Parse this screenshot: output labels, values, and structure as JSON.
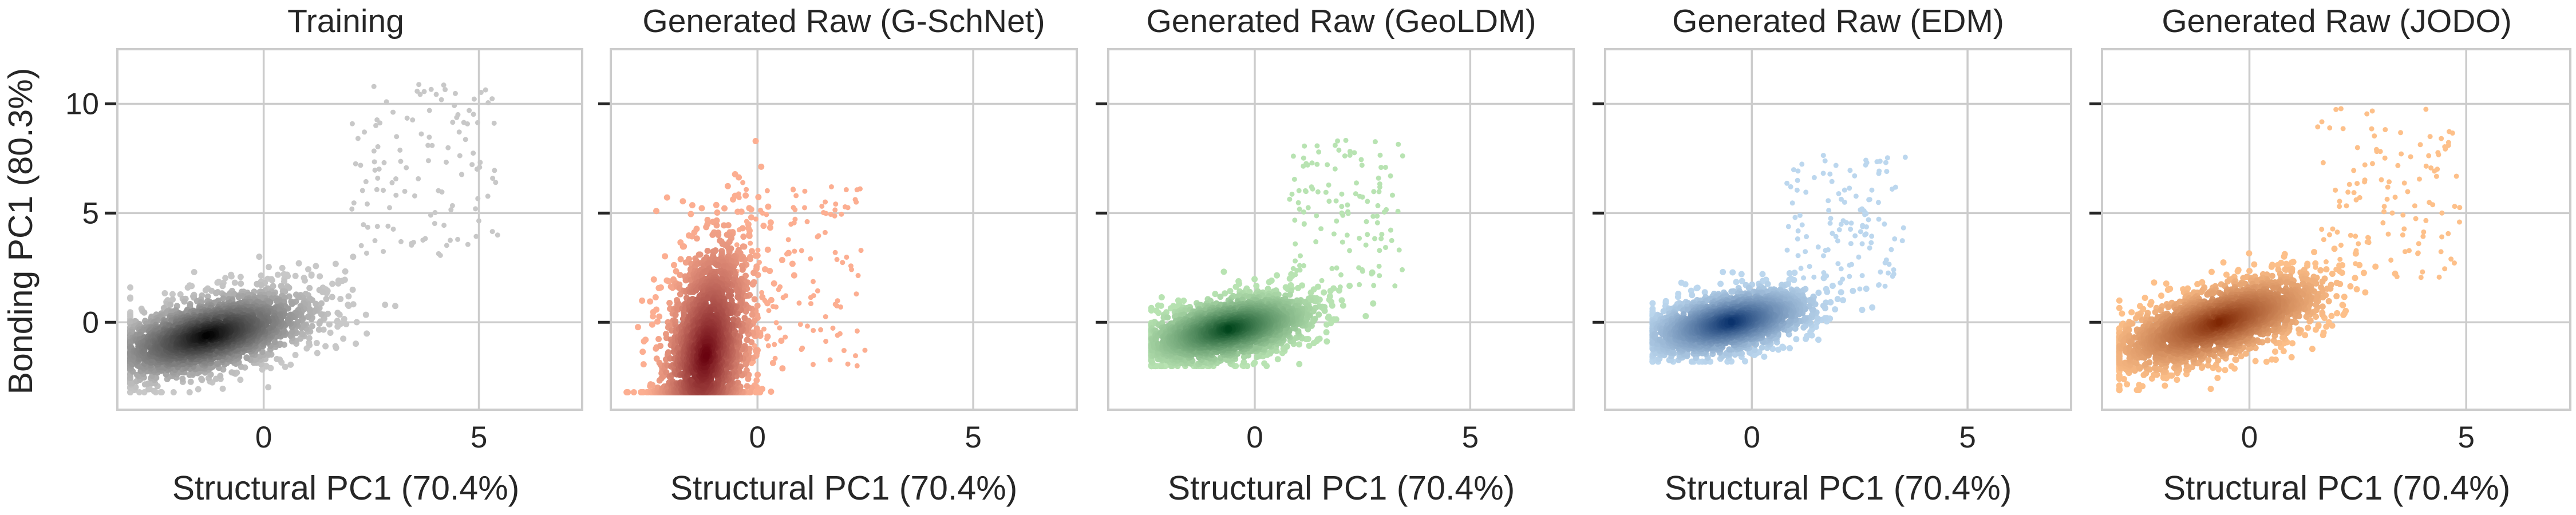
{
  "chart_data": [
    {
      "type": "scatter",
      "title": "Training",
      "xlabel": "Structural PC1 (70.4%)",
      "ylabel": "Bonding PC1 (80.3%)",
      "xlim": [
        -3.4,
        7.4
      ],
      "ylim": [
        -4.0,
        12.5
      ],
      "xticks": [
        0,
        5
      ],
      "yticks": [
        0,
        5,
        10
      ],
      "grid": true,
      "color": "#000000",
      "light_color": "#c8c8c8",
      "density": {
        "center": [
          -1.3,
          -0.6
        ],
        "slope": 0.42,
        "spread_x": 1.25,
        "spread_y": 0.9,
        "x_range": [
          -3.1,
          6.9
        ],
        "y_range": [
          -3.2,
          12.0
        ],
        "outlier_region": {
          "x": [
            2.0,
            5.5
          ],
          "y": [
            3.0,
            11.0
          ]
        }
      }
    },
    {
      "type": "scatter",
      "title": "Generated Raw (G-SchNet)",
      "xlabel": "Structural PC1 (70.4%)",
      "xlim": [
        -3.4,
        7.4
      ],
      "ylim": [
        -4.0,
        12.5
      ],
      "xticks": [
        0,
        5
      ],
      "yticks": [
        0,
        5,
        10
      ],
      "grid": true,
      "color": "#67000d",
      "light_color": "#fcae91",
      "density": {
        "center": [
          -1.2,
          -1.5
        ],
        "slope": 1.6,
        "spread_x": 0.55,
        "spread_y": 2.6,
        "x_range": [
          -3.1,
          4.3
        ],
        "y_range": [
          -3.2,
          9.8
        ],
        "outlier_region": {
          "x": [
            -0.5,
            2.5
          ],
          "y": [
            -2.0,
            6.5
          ]
        }
      }
    },
    {
      "type": "scatter",
      "title": "Generated Raw (GeoLDM)",
      "xlabel": "Structural PC1 (70.4%)",
      "xlim": [
        -3.4,
        7.4
      ],
      "ylim": [
        -4.0,
        12.5
      ],
      "xticks": [
        0,
        5
      ],
      "yticks": [
        0,
        5,
        10
      ],
      "grid": true,
      "color": "#00441b",
      "light_color": "#b8e3b2",
      "density": {
        "center": [
          -0.6,
          -0.3
        ],
        "slope": 0.35,
        "spread_x": 0.95,
        "spread_y": 0.7,
        "x_range": [
          -2.4,
          3.9
        ],
        "y_range": [
          -2.0,
          8.8
        ],
        "outlier_region": {
          "x": [
            0.8,
            3.5
          ],
          "y": [
            1.5,
            8.5
          ]
        }
      }
    },
    {
      "type": "scatter",
      "title": "Generated Raw (EDM)",
      "xlabel": "Structural PC1 (70.4%)",
      "xlim": [
        -3.4,
        7.4
      ],
      "ylim": [
        -4.0,
        12.5
      ],
      "xticks": [
        0,
        5
      ],
      "yticks": [
        0,
        5,
        10
      ],
      "grid": true,
      "color": "#08306b",
      "light_color": "#bcd7ee",
      "density": {
        "center": [
          -0.5,
          0.0
        ],
        "slope": 0.35,
        "spread_x": 0.95,
        "spread_y": 0.7,
        "x_range": [
          -2.3,
          3.9
        ],
        "y_range": [
          -1.8,
          8.1
        ],
        "outlier_region": {
          "x": [
            0.8,
            3.6
          ],
          "y": [
            1.5,
            8.0
          ]
        }
      }
    },
    {
      "type": "scatter",
      "title": "Generated Raw (JODO)",
      "xlabel": "Structural PC1 (70.4%)",
      "xlim": [
        -3.4,
        7.4
      ],
      "ylim": [
        -4.0,
        12.5
      ],
      "xticks": [
        0,
        5
      ],
      "yticks": [
        0,
        5,
        10
      ],
      "grid": true,
      "color": "#7f2704",
      "light_color": "#fdc08a",
      "density": {
        "center": [
          -0.7,
          0.0
        ],
        "slope": 0.55,
        "spread_x": 1.2,
        "spread_y": 0.85,
        "x_range": [
          -3.0,
          5.8
        ],
        "y_range": [
          -3.1,
          9.8
        ],
        "outlier_region": {
          "x": [
            1.5,
            5.0
          ],
          "y": [
            2.0,
            9.8
          ]
        }
      }
    }
  ]
}
